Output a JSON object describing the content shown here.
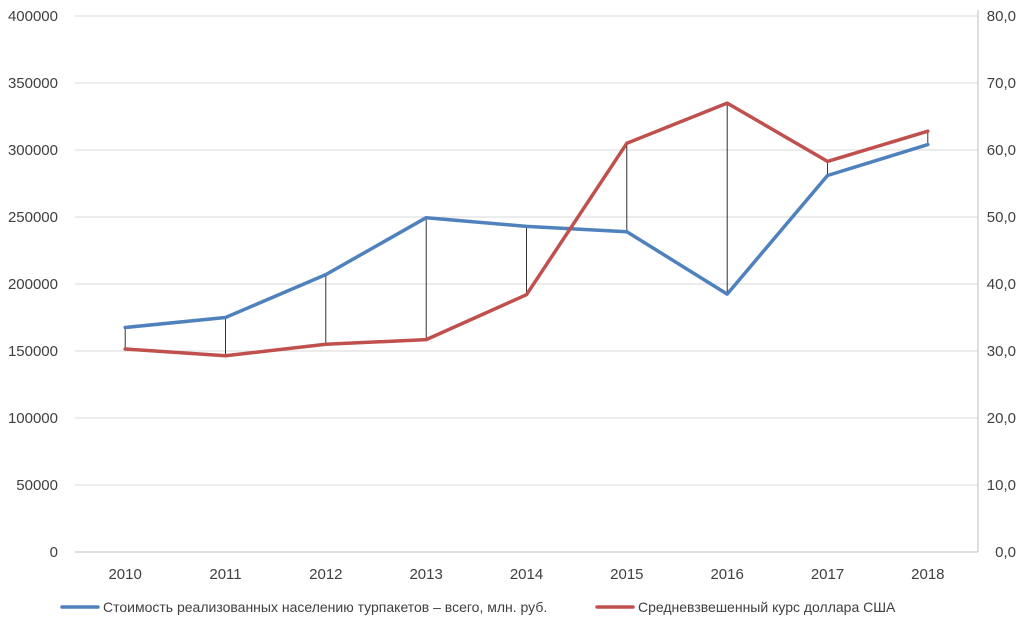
{
  "chart_data": {
    "type": "line",
    "title": "",
    "categories": [
      "2010",
      "2011",
      "2012",
      "2013",
      "2014",
      "2015",
      "2016",
      "2017",
      "2018"
    ],
    "series": [
      {
        "name": "Стоимость реализованных населению турпакетов – всего, млн. руб.",
        "axis": "left",
        "color": "#4f81bd",
        "values": [
          167500,
          175000,
          207000,
          249500,
          243000,
          239000,
          192500,
          281000,
          304000
        ]
      },
      {
        "name": "Средневзвешенный курс доллара США",
        "axis": "right",
        "color": "#c0504d",
        "values": [
          30.3,
          29.3,
          31.0,
          31.7,
          38.4,
          61.0,
          67.0,
          58.3,
          62.8
        ]
      }
    ],
    "y_left": {
      "min": 0,
      "max": 400000,
      "step": 50000,
      "tick_labels": [
        "0",
        "50000",
        "100000",
        "150000",
        "200000",
        "250000",
        "300000",
        "350000",
        "400000"
      ]
    },
    "y_right": {
      "min": 0,
      "max": 80,
      "step": 10,
      "tick_labels": [
        "0,0",
        "10,0",
        "20,0",
        "30,0",
        "40,0",
        "50,0",
        "60,0",
        "70,0",
        "80,0"
      ]
    },
    "grid": true,
    "high_low_lines": true,
    "legend": "bottom",
    "colors": {
      "grid": "#d9d9d9",
      "axis": "#bfbfbf",
      "drop_line": "#000000",
      "text": "#404040"
    }
  }
}
